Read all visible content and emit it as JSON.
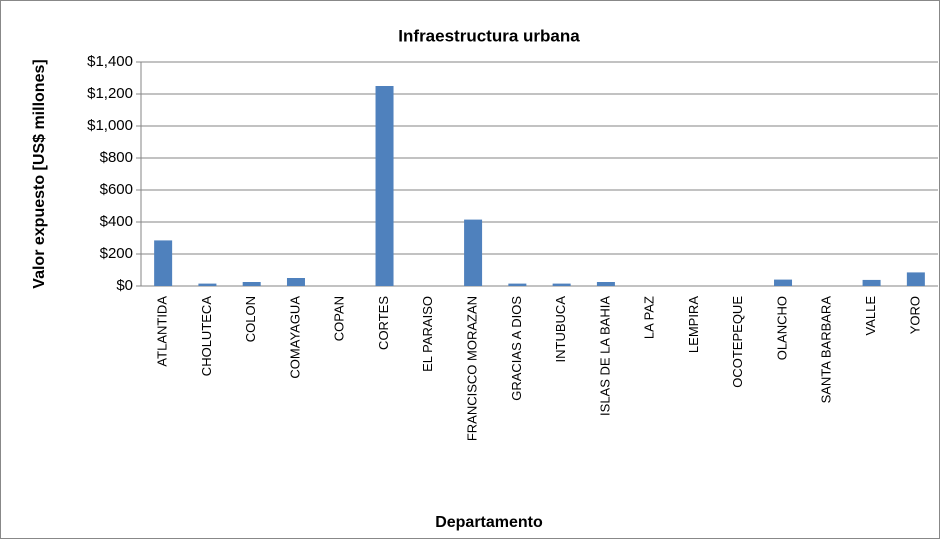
{
  "chart_data": {
    "type": "bar",
    "title": "Infraestructura  urbana",
    "x_label": "Departamento",
    "y_label": "Valor expuesto [US$ millones]",
    "categories": [
      "ATLANTIDA",
      "CHOLUTECA",
      "COLON",
      "COMAYAGUA",
      "COPAN",
      "CORTES",
      "EL PARAISO",
      "FRANCISCO MORAZAN",
      "GRACIAS A DIOS",
      "INTUBUCA",
      "ISLAS DE LA BAHIA",
      "LA PAZ",
      "LEMPIRA",
      "OCOTEPEQUE",
      "OLANCHO",
      "SANTA BARBARA",
      "VALLE",
      "YORO"
    ],
    "values": [
      285,
      15,
      25,
      50,
      0,
      1250,
      0,
      415,
      15,
      15,
      25,
      0,
      0,
      0,
      40,
      0,
      38,
      85
    ],
    "color": "#4f81bd",
    "ylim": [
      0,
      1400
    ],
    "yticks": [
      {
        "value": 0,
        "label": "$0"
      },
      {
        "value": 200,
        "label": "$200"
      },
      {
        "value": 400,
        "label": "$400"
      },
      {
        "value": 600,
        "label": "$600"
      },
      {
        "value": 800,
        "label": "$800"
      },
      {
        "value": 1000,
        "label": "$1,000"
      },
      {
        "value": 1200,
        "label": "$1,200"
      },
      {
        "value": 1400,
        "label": "$1,400"
      }
    ],
    "grid": true
  }
}
